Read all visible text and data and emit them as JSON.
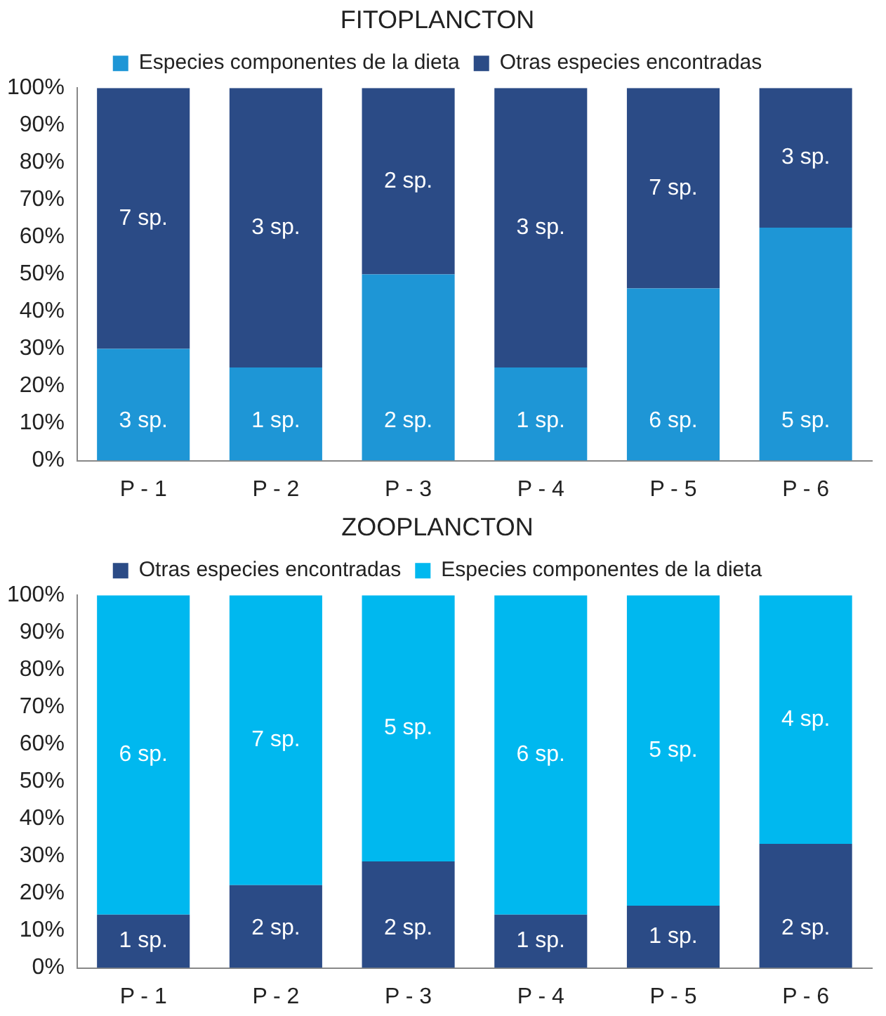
{
  "chart_data": [
    {
      "type": "bar",
      "title": "FITOPLANCTON",
      "stacked": true,
      "legend": "top",
      "categories": [
        "P - 1",
        "P - 2",
        "P - 3",
        "P - 4",
        "P - 5",
        "P - 6"
      ],
      "series": [
        {
          "name": "Especies componentes de la dieta",
          "color": "#1e96d6",
          "values": [
            30,
            25,
            50,
            25,
            46.2,
            62.5
          ]
        },
        {
          "name": "Otras especies encontradas",
          "color": "#2b4b86",
          "values": [
            70,
            75,
            50,
            75,
            53.8,
            37.5
          ]
        }
      ],
      "annotations": [
        "3 sp.",
        "1 sp.",
        "2 sp.",
        "1 sp.",
        "6 sp.",
        "5 sp.",
        "7 sp.",
        "3 sp.",
        "2 sp.",
        "3 sp.",
        "7 sp.",
        "3 sp."
      ],
      "ylim": [
        0,
        100
      ],
      "yticks": [
        {
          "value": 0,
          "label": "0%"
        },
        {
          "value": 10,
          "label": "10%"
        },
        {
          "value": 20,
          "label": "20%"
        },
        {
          "value": 30,
          "label": "30%"
        },
        {
          "value": 40,
          "label": "40%"
        },
        {
          "value": 50,
          "label": "50%"
        },
        {
          "value": 60,
          "label": "60%"
        },
        {
          "value": 70,
          "label": "70%"
        },
        {
          "value": 80,
          "label": "80%"
        },
        {
          "value": 90,
          "label": "90%"
        },
        {
          "value": 100,
          "label": "100%"
        }
      ]
    },
    {
      "type": "bar",
      "title": "ZOOPLANCTON",
      "stacked": true,
      "legend": "top",
      "categories": [
        "P - 1",
        "P - 2",
        "P - 3",
        "P - 4",
        "P - 5",
        "P - 6"
      ],
      "series": [
        {
          "name": "Otras especies encontradas",
          "color": "#2b4b86",
          "values": [
            14.3,
            22.2,
            28.6,
            14.3,
            16.7,
            33.3
          ]
        },
        {
          "name": "Especies componentes de la dieta",
          "color": "#00b8ef",
          "values": [
            85.7,
            77.8,
            71.4,
            85.7,
            83.3,
            66.7
          ]
        }
      ],
      "annotations": [
        "1 sp.",
        "2 sp.",
        "2 sp.",
        "1 sp.",
        "1 sp.",
        "2 sp.",
        "6 sp.",
        "7 sp.",
        "5 sp.",
        "6 sp.",
        "5 sp.",
        "4 sp."
      ],
      "ylim": [
        0,
        100
      ],
      "yticks": [
        {
          "value": 0,
          "label": "0%"
        },
        {
          "value": 10,
          "label": "10%"
        },
        {
          "value": 20,
          "label": "20%"
        },
        {
          "value": 30,
          "label": "30%"
        },
        {
          "value": 40,
          "label": "40%"
        },
        {
          "value": 50,
          "label": "50%"
        },
        {
          "value": 60,
          "label": "60%"
        },
        {
          "value": 70,
          "label": "70%"
        },
        {
          "value": 80,
          "label": "80%"
        },
        {
          "value": 90,
          "label": "90%"
        },
        {
          "value": 100,
          "label": "100%"
        }
      ]
    }
  ]
}
